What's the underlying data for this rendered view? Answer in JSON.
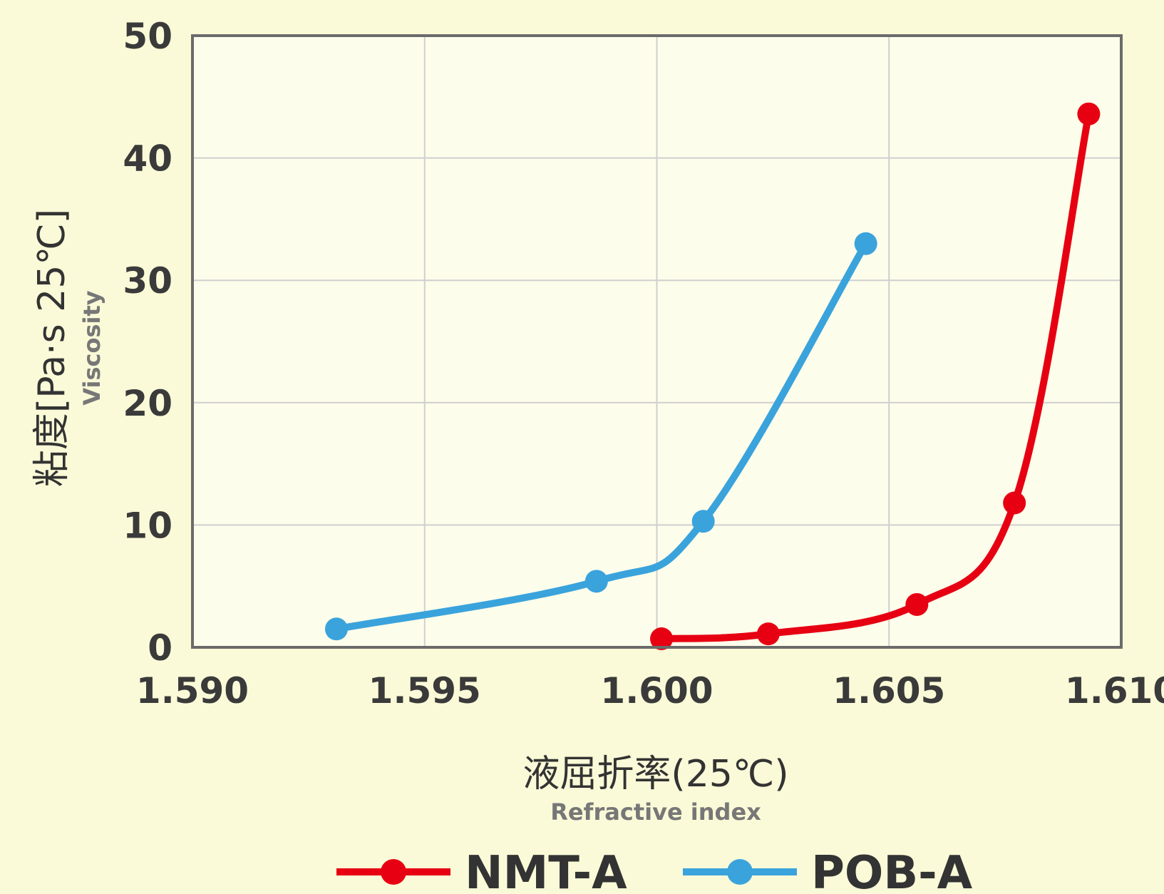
{
  "chart_data": {
    "type": "line",
    "xlabel": "液屈折率(25℃)",
    "xlabel_sub": "Refractive index",
    "ylabel": "粘度[Pa·s 25℃]",
    "ylabel_sub": "Viscosity",
    "xlim": [
      1.59,
      1.61
    ],
    "ylim": [
      0,
      50
    ],
    "x_ticks": [
      "1.590",
      "1.595",
      "1.600",
      "1.605",
      "1.610"
    ],
    "y_ticks": [
      "0",
      "10",
      "20",
      "30",
      "40",
      "50"
    ],
    "x_tick_values": [
      1.59,
      1.595,
      1.6,
      1.605,
      1.61
    ],
    "y_tick_values": [
      0,
      10,
      20,
      30,
      40,
      50
    ],
    "grid": true,
    "legend_position": "bottom",
    "series": [
      {
        "name": "NMT-A",
        "color": "#e60012",
        "x": [
          1.6001,
          1.6024,
          1.6056,
          1.6077,
          1.6093
        ],
        "y": [
          0.7,
          1.1,
          3.5,
          11.8,
          43.6
        ]
      },
      {
        "name": "POB-A",
        "color": "#3aa3dc",
        "x": [
          1.5931,
          1.5987,
          1.601,
          1.6045
        ],
        "y": [
          1.5,
          5.4,
          10.3,
          33.0
        ]
      }
    ]
  }
}
